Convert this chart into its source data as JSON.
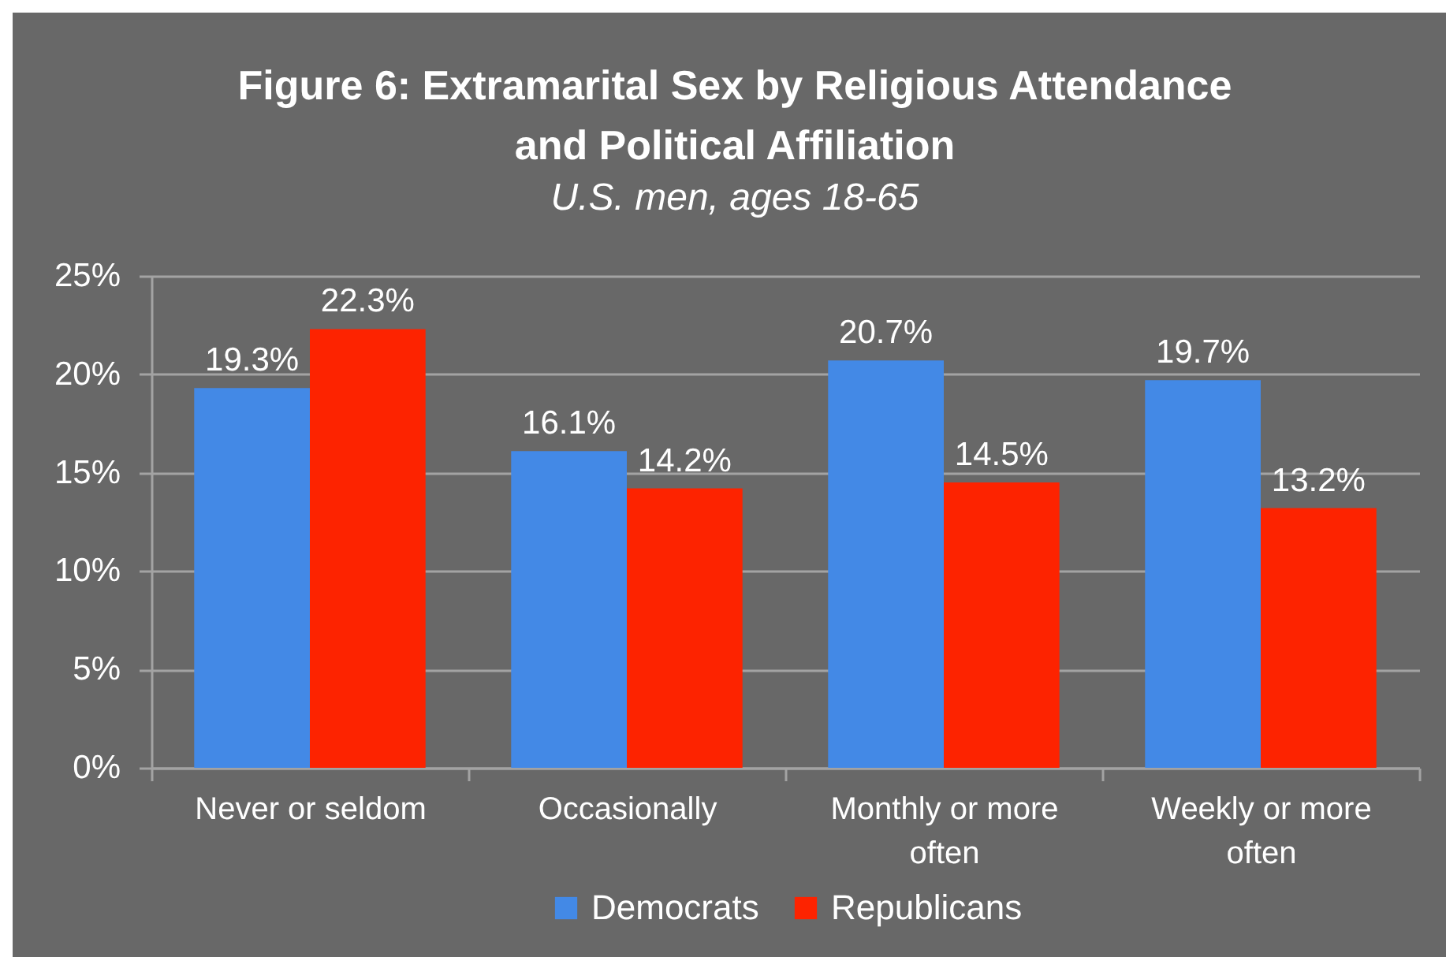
{
  "chart_data": {
    "type": "bar",
    "title": "Figure 6: Extramarital Sex by Religious Attendance and Political Affiliation",
    "subtitle": "U.S. men, ages 18-65",
    "categories": [
      "Never or seldom",
      "Occasionally",
      "Monthly or more often",
      "Weekly or more often"
    ],
    "series": [
      {
        "name": "Democrats",
        "color": "#4389e6",
        "values": [
          19.3,
          16.1,
          20.7,
          19.7
        ],
        "value_labels": [
          "19.3%",
          "16.1%",
          "20.7%",
          "19.7%"
        ]
      },
      {
        "name": "Republicans",
        "color": "#fd2300",
        "values": [
          22.3,
          14.2,
          14.5,
          13.2
        ],
        "value_labels": [
          "22.3%",
          "14.2%",
          "14.5%",
          "13.2%"
        ]
      }
    ],
    "ylim": [
      0,
      25
    ],
    "yticks": [
      {
        "value": 0,
        "label": "0%"
      },
      {
        "value": 5,
        "label": "5%"
      },
      {
        "value": 10,
        "label": "10%"
      },
      {
        "value": 15,
        "label": "15%"
      },
      {
        "value": 20,
        "label": "20%"
      },
      {
        "value": 25,
        "label": "25%"
      }
    ],
    "grid": "y",
    "legend": "bottom"
  }
}
